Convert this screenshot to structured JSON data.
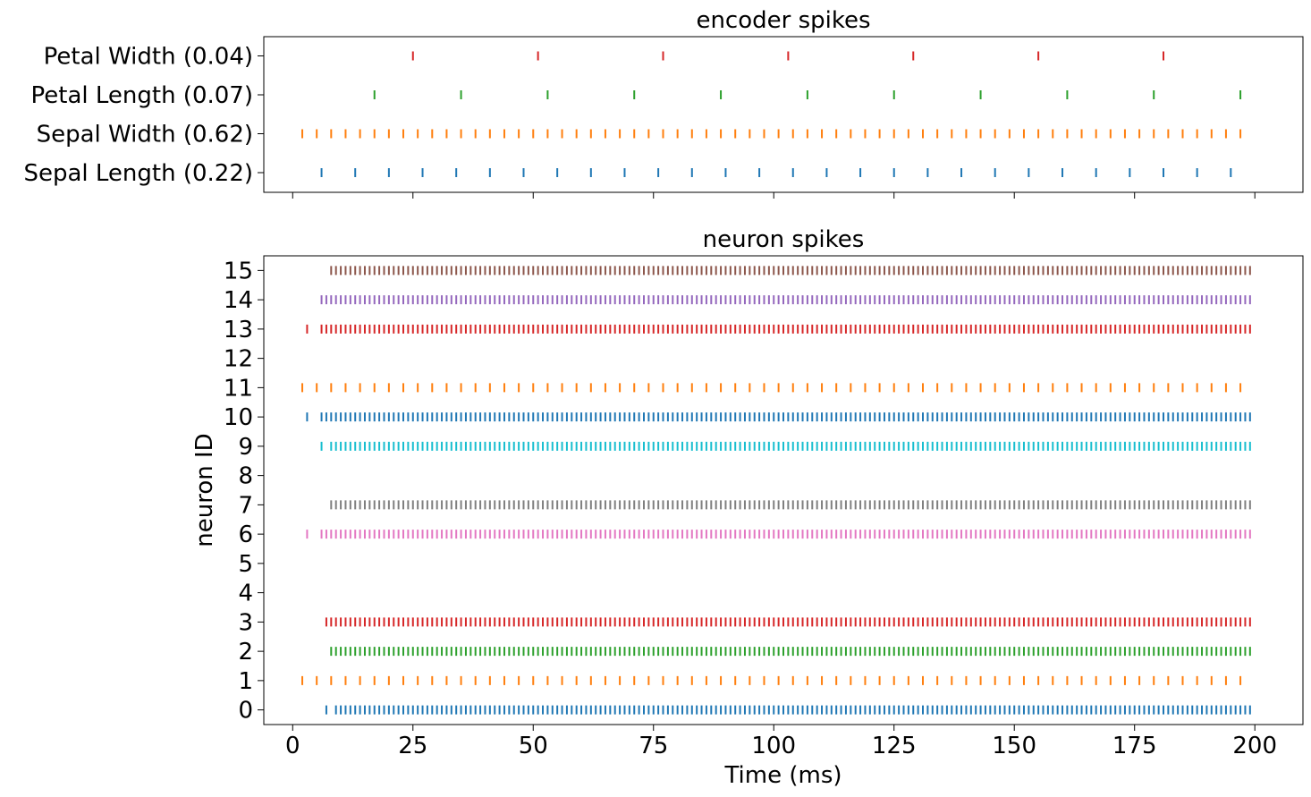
{
  "chart_data": [
    {
      "type": "raster",
      "title": "encoder spikes",
      "xlabel": "",
      "ylabel": "",
      "xlim": [
        -6,
        210
      ],
      "rows": [
        {
          "label": "Sepal Length (0.22)",
          "color": "#1f77b4",
          "start": 6,
          "interval": 7,
          "end": 199
        },
        {
          "label": "Sepal Width (0.62)",
          "color": "#ff7f0e",
          "start": 2,
          "interval": 3,
          "end": 199
        },
        {
          "label": "Petal Length (0.07)",
          "color": "#2ca02c",
          "start": 17,
          "interval": 18,
          "end": 199
        },
        {
          "label": "Petal Width (0.04)",
          "color": "#d62728",
          "start": 25,
          "interval": 26,
          "end": 199
        }
      ]
    },
    {
      "type": "raster",
      "title": "neuron spikes",
      "xlabel": "Time (ms)",
      "ylabel": "neuron ID",
      "xlim": [
        -6,
        210
      ],
      "ylim": [
        -0.5,
        15.5
      ],
      "xticks": [
        "0",
        "25",
        "50",
        "75",
        "100",
        "125",
        "150",
        "175",
        "200"
      ],
      "yticks": [
        "0",
        "1",
        "2",
        "3",
        "4",
        "5",
        "6",
        "7",
        "8",
        "9",
        "10",
        "11",
        "12",
        "13",
        "14",
        "15"
      ],
      "rows": [
        {
          "id": 0,
          "color": "#1f77b4",
          "extra": [
            7
          ],
          "start": 9,
          "interval": 1,
          "end": 199
        },
        {
          "id": 1,
          "color": "#ff7f0e",
          "extra": [],
          "start": 2,
          "interval": 3,
          "end": 199
        },
        {
          "id": 2,
          "color": "#2ca02c",
          "extra": [],
          "start": 8,
          "interval": 1,
          "end": 199
        },
        {
          "id": 3,
          "color": "#d62728",
          "extra": [],
          "start": 7,
          "interval": 1,
          "end": 199
        },
        {
          "id": 6,
          "color": "#e377c2",
          "extra": [
            3
          ],
          "start": 6,
          "interval": 1,
          "end": 199
        },
        {
          "id": 7,
          "color": "#7f7f7f",
          "extra": [],
          "start": 8,
          "interval": 1,
          "end": 199
        },
        {
          "id": 9,
          "color": "#17becf",
          "extra": [
            6
          ],
          "start": 8,
          "interval": 1,
          "end": 199
        },
        {
          "id": 10,
          "color": "#1f77b4",
          "extra": [
            3
          ],
          "start": 6,
          "interval": 1,
          "end": 199
        },
        {
          "id": 11,
          "color": "#ff7f0e",
          "extra": [],
          "start": 2,
          "interval": 3,
          "end": 199
        },
        {
          "id": 13,
          "color": "#d62728",
          "extra": [
            3
          ],
          "start": 6,
          "interval": 1,
          "end": 199
        },
        {
          "id": 14,
          "color": "#9467bd",
          "extra": [],
          "start": 6,
          "interval": 1,
          "end": 199
        },
        {
          "id": 15,
          "color": "#8c564b",
          "extra": [],
          "start": 8,
          "interval": 1,
          "end": 199
        }
      ]
    }
  ]
}
